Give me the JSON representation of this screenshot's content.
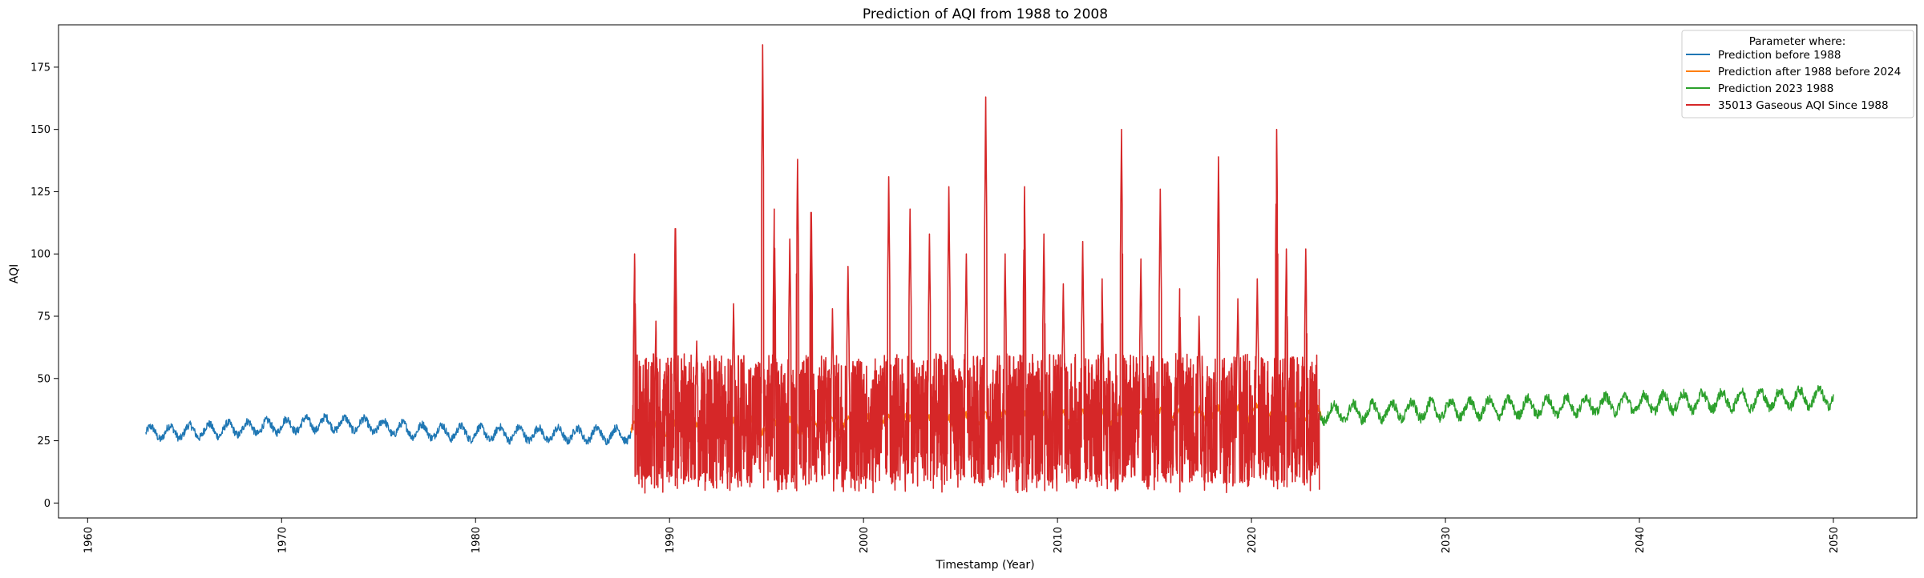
{
  "chart_data": {
    "type": "line",
    "title": "Prediction of AQI from 1988 to 2008",
    "xlabel": "Timestamp (Year)",
    "ylabel": "AQI",
    "xlim": [
      1958.5,
      2054.3
    ],
    "ylim": [
      -6,
      192
    ],
    "x_ticks": [
      "1960",
      "1970",
      "1980",
      "1990",
      "2000",
      "2010",
      "2020",
      "2030",
      "2040",
      "2050"
    ],
    "y_ticks": [
      "0",
      "25",
      "50",
      "75",
      "100",
      "125",
      "150",
      "175"
    ],
    "grid": false,
    "legend": {
      "title": "Parameter where:",
      "placement": "top-right"
    },
    "series": [
      {
        "name": "Prediction before 1988",
        "color": "#1f77b4",
        "x_range": [
          1963.0,
          1988.0
        ],
        "trend": [
          [
            1963,
            28
          ],
          [
            1966,
            29
          ],
          [
            1969,
            30.5
          ],
          [
            1972,
            32
          ],
          [
            1974,
            31.5
          ],
          [
            1977,
            29
          ],
          [
            1980,
            28
          ],
          [
            1984,
            27.5
          ],
          [
            1988,
            27.5
          ]
        ],
        "amplitude": 3.5
      },
      {
        "name": "Prediction after 1988 before 2024",
        "color": "#ff7f0e",
        "x_range": [
          1988.0,
          2023.6
        ],
        "trend": [
          [
            1988,
            29
          ],
          [
            1995,
            31
          ],
          [
            2005,
            33
          ],
          [
            2015,
            34.5
          ],
          [
            2023.6,
            37
          ]
        ],
        "amplitude": 3.5
      },
      {
        "name": "Prediction 2023 1988",
        "color": "#2ca02c",
        "x_range": [
          2023.5,
          2050.0
        ],
        "trend": [
          [
            2023.5,
            36
          ],
          [
            2030,
            37.5
          ],
          [
            2040,
            40
          ],
          [
            2050,
            42.5
          ]
        ],
        "amplitude": 4.5
      },
      {
        "name": "35013 Gaseous AQI Since 1988",
        "color": "#d62728",
        "x_range": [
          1988.1,
          2023.5
        ],
        "peaks": [
          [
            1988.2,
            100
          ],
          [
            1989.3,
            73
          ],
          [
            1990.3,
            118
          ],
          [
            1991.4,
            65
          ],
          [
            1992.4,
            62
          ],
          [
            1993.3,
            80
          ],
          [
            1994.8,
            184
          ],
          [
            1995.4,
            118
          ],
          [
            1996.2,
            106
          ],
          [
            1996.6,
            138
          ],
          [
            1997.3,
            125
          ],
          [
            1998.4,
            78
          ],
          [
            1999.2,
            95
          ],
          [
            2001.3,
            131
          ],
          [
            2002.4,
            118
          ],
          [
            2003.4,
            108
          ],
          [
            2004.4,
            127
          ],
          [
            2005.3,
            100
          ],
          [
            2006.3,
            163
          ],
          [
            2007.3,
            100
          ],
          [
            2008.3,
            127
          ],
          [
            2009.3,
            108
          ],
          [
            2010.3,
            88
          ],
          [
            2011.3,
            105
          ],
          [
            2012.3,
            90
          ],
          [
            2013.3,
            150
          ],
          [
            2014.3,
            98
          ],
          [
            2015.3,
            126
          ],
          [
            2016.3,
            86
          ],
          [
            2017.3,
            75
          ],
          [
            2018.3,
            139
          ],
          [
            2019.3,
            82
          ],
          [
            2020.3,
            90
          ],
          [
            2021.3,
            150
          ],
          [
            2021.8,
            102
          ],
          [
            2022.8,
            102
          ]
        ],
        "range": [
          3,
          184
        ]
      }
    ]
  }
}
